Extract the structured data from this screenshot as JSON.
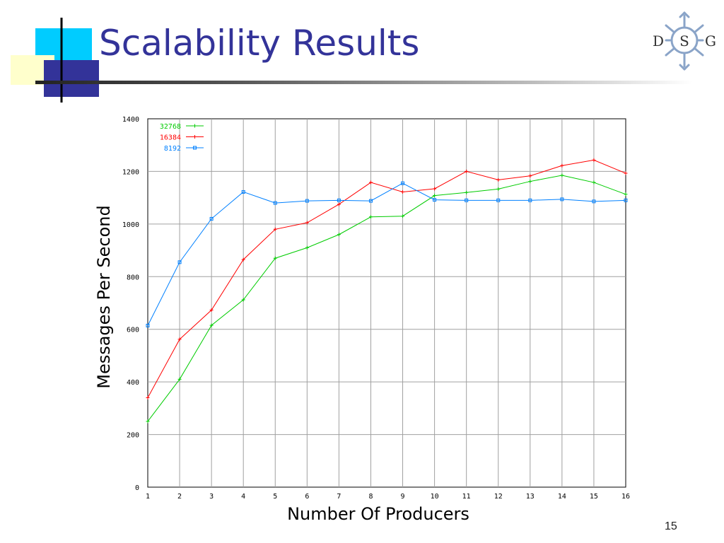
{
  "slide": {
    "title": "Scalability Results",
    "page_number": "15",
    "logo_letters": [
      "D",
      "S",
      "G"
    ]
  },
  "chart_data": {
    "type": "line",
    "title": "",
    "xlabel": "Number Of Producers",
    "ylabel": "Messages Per Second",
    "x": [
      1,
      2,
      3,
      4,
      5,
      6,
      7,
      8,
      9,
      10,
      11,
      12,
      13,
      14,
      15,
      16
    ],
    "xlim": [
      1,
      16
    ],
    "ylim": [
      0,
      1400
    ],
    "yticks": [
      0,
      200,
      400,
      600,
      800,
      1000,
      1200,
      1400
    ],
    "grid": true,
    "legend": "top-left",
    "series": [
      {
        "name": "32768",
        "color": "#00cc00",
        "values": [
          250,
          410,
          615,
          712,
          870,
          910,
          960,
          1027,
          1030,
          1108,
          1120,
          1133,
          1162,
          1185,
          1158,
          1113
        ]
      },
      {
        "name": "16384",
        "color": "#ff0000",
        "values": [
          340,
          562,
          673,
          865,
          980,
          1005,
          1075,
          1158,
          1122,
          1134,
          1200,
          1168,
          1183,
          1222,
          1243,
          1193
        ]
      },
      {
        "name": "8192",
        "color": "#0080ff",
        "values": [
          614,
          855,
          1020,
          1122,
          1080,
          1088,
          1090,
          1088,
          1155,
          1092,
          1090,
          1090,
          1090,
          1094,
          1086,
          1090
        ]
      }
    ]
  }
}
